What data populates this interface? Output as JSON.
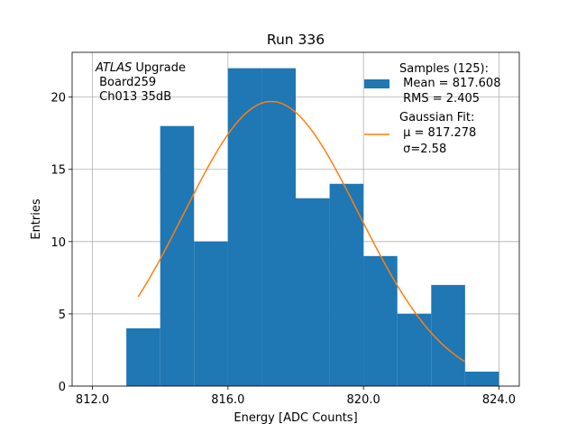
{
  "chart_data": {
    "type": "bar",
    "title": "Run 336",
    "xlabel": "Energy [ADC Counts]",
    "ylabel": "Entries",
    "xlim": [
      811.4,
      824.6
    ],
    "ylim": [
      0,
      23.1
    ],
    "grid": true,
    "xticks": [
      812.0,
      816.0,
      820.0,
      824.0
    ],
    "xtick_labels": [
      "812.0",
      "816.0",
      "820.0",
      "824.0"
    ],
    "yticks": [
      0,
      5,
      10,
      15,
      20
    ],
    "ytick_labels": [
      "0",
      "5",
      "10",
      "15",
      "20"
    ],
    "histogram": {
      "name": "Samples (125):",
      "color": "#1f77b4",
      "bin_edges": [
        813.0,
        814.0,
        815.0,
        816.0,
        817.0,
        818.0,
        819.0,
        820.0,
        821.0,
        822.0,
        823.0,
        824.0
      ],
      "counts": [
        4,
        18,
        10,
        22,
        22,
        13,
        14,
        9,
        5,
        7,
        1
      ]
    },
    "fit": {
      "name": "Gaussian Fit:",
      "color": "#ff7f0e",
      "type": "gaussian",
      "amplitude": 19.7,
      "mu": 817.278,
      "sigma": 2.58,
      "x_range": [
        813.35,
        823.0
      ]
    },
    "legend": {
      "position": "top-right",
      "entries": [
        {
          "kind": "patch",
          "lines": [
            "Samples (125):",
            " Mean = 817.608",
            " RMS = 2.405"
          ]
        },
        {
          "kind": "line",
          "lines": [
            "Gaussian Fit:",
            " μ = 817.278",
            " σ=2.58"
          ]
        }
      ]
    },
    "annotation": {
      "position": "top-left",
      "italic": "ATLAS",
      "first_rest": " Upgrade",
      "lines": [
        " Board259",
        " Ch013 35dB"
      ]
    }
  }
}
